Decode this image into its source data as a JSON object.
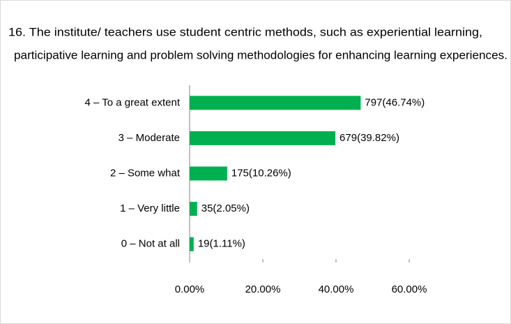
{
  "chart_data": {
    "type": "barh",
    "title": [
      "16. The institute/ teachers use student centric methods, such as experiential learning,",
      "participative learning and problem solving methodologies for enhancing learning experiences."
    ],
    "categories": [
      "4 – To a great extent",
      "3 – Moderate",
      "2 – Some what",
      "1 – Very little",
      "0 – Not at all"
    ],
    "values": [
      46.74,
      39.82,
      10.26,
      2.05,
      1.11
    ],
    "value_labels": [
      "797(46.74%)",
      "679(39.82%)",
      "175(10.26%)",
      "35(2.05%)",
      "19(1.11%)"
    ],
    "color": "#00b050",
    "xlim": [
      0,
      60
    ],
    "xticks": [
      {
        "value": 0,
        "label": "0.00%"
      },
      {
        "value": 20,
        "label": "20.00%"
      },
      {
        "value": 40,
        "label": "40.00%"
      },
      {
        "value": 60,
        "label": "60.00%"
      }
    ],
    "grid": false
  }
}
